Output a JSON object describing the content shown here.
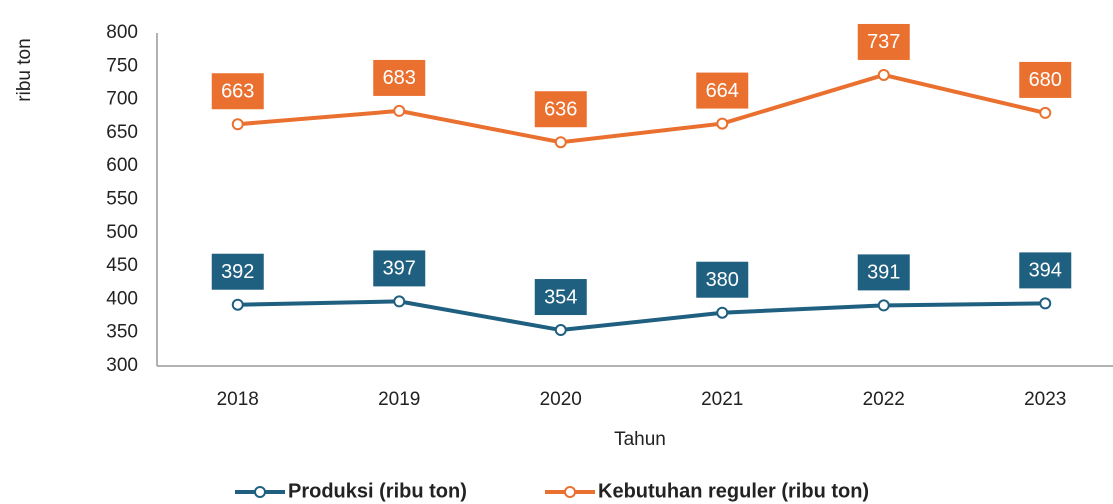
{
  "chart_data": {
    "type": "line",
    "y_label": "ribu ton",
    "x_label": "Tahun",
    "categories": [
      "2018",
      "2019",
      "2020",
      "2021",
      "2022",
      "2023"
    ],
    "series": [
      {
        "name": "Produksi (ribu ton)",
        "color": "#1f5f80",
        "values": [
          392,
          397,
          354,
          380,
          391,
          394
        ]
      },
      {
        "name": "Kebutuhan reguler (ribu ton)",
        "color": "#ea7030",
        "values": [
          663,
          683,
          636,
          664,
          737,
          680
        ]
      }
    ],
    "ylim": [
      300,
      800
    ],
    "yticks": [
      300,
      350,
      400,
      450,
      500,
      550,
      600,
      650,
      700,
      750,
      800
    ],
    "grid": false,
    "legend": "bottom"
  }
}
